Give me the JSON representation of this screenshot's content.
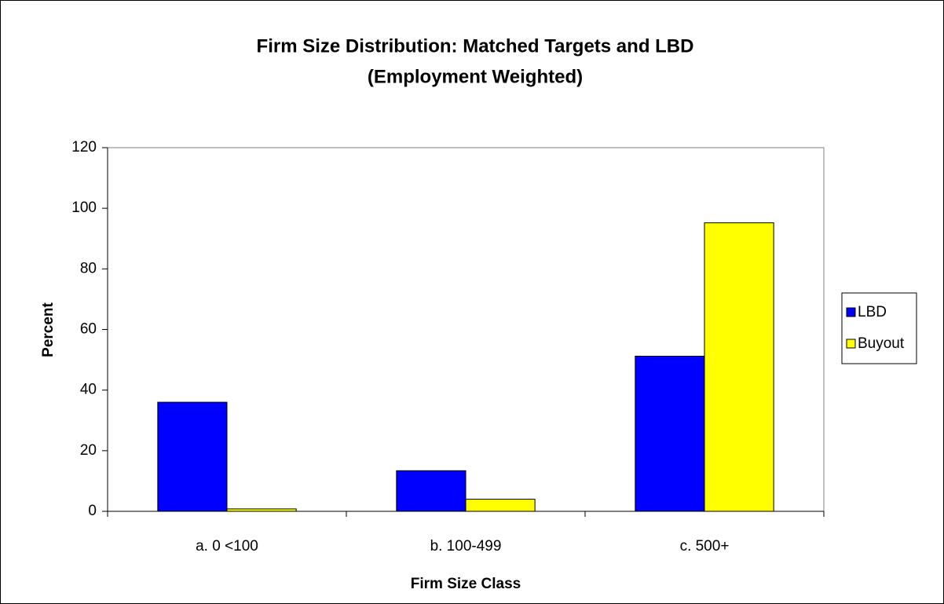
{
  "chart_data": {
    "type": "bar",
    "title": "Firm Size Distribution: Matched Targets and LBD",
    "subtitle": "(Employment Weighted)",
    "x_label": "Firm Size Class",
    "y_label": "Percent",
    "categories": [
      "a. 0 <100",
      "b. 100-499",
      "c. 500+"
    ],
    "series": [
      {
        "name": "LBD",
        "color": "#0000ff",
        "values": [
          36,
          13.4,
          51.2
        ]
      },
      {
        "name": "Buyout",
        "color": "#ffff00",
        "values": [
          0.8,
          4,
          95.2
        ]
      }
    ],
    "ylim": [
      0,
      120
    ],
    "yticks": [
      0,
      20,
      40,
      60,
      80,
      100,
      120
    ],
    "grid": false,
    "legend": "right"
  }
}
